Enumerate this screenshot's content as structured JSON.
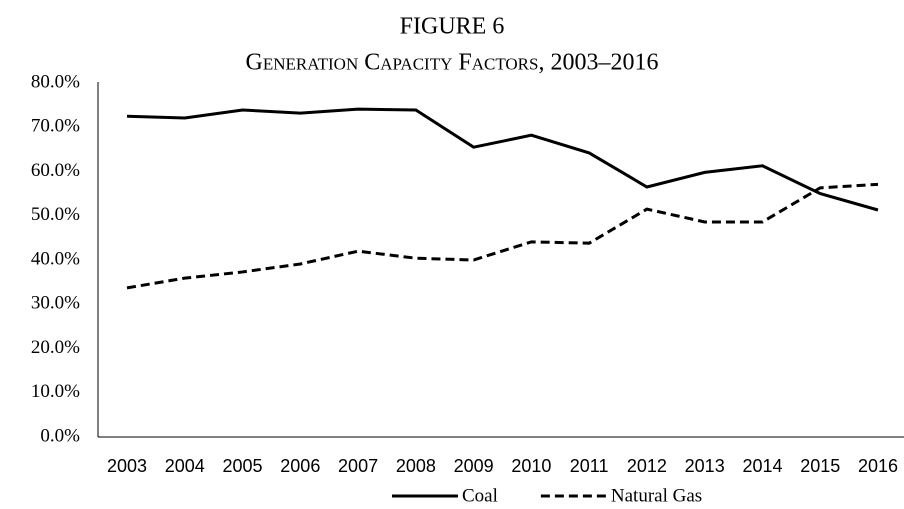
{
  "chart_data": {
    "type": "line",
    "title": "FIGURE 6",
    "subtitle": "Generation Capacity Factors, 2003–2016",
    "x": [
      "2003",
      "2004",
      "2005",
      "2006",
      "2007",
      "2008",
      "2009",
      "2010",
      "2011",
      "2012",
      "2013",
      "2014",
      "2015",
      "2016"
    ],
    "series": [
      {
        "name": "Coal",
        "color": "#000000",
        "dash": "solid",
        "values": [
          72.5,
          72.1,
          73.9,
          73.2,
          74.1,
          73.9,
          65.5,
          68.2,
          64.2,
          56.5,
          59.8,
          61.3,
          55.0,
          51.3
        ]
      },
      {
        "name": "Natural Gas",
        "color": "#000000",
        "dash": "dashed",
        "values": [
          33.7,
          35.9,
          37.3,
          39.1,
          42.0,
          40.4,
          40.0,
          44.1,
          43.8,
          51.5,
          48.6,
          48.6,
          56.3,
          57.1
        ]
      }
    ],
    "ylim": [
      0,
      80
    ],
    "yticks": [
      {
        "value": 0,
        "label": "0.0%"
      },
      {
        "value": 10,
        "label": "10.0%"
      },
      {
        "value": 20,
        "label": "20.0%"
      },
      {
        "value": 30,
        "label": "30.0%"
      },
      {
        "value": 40,
        "label": "40.0%"
      },
      {
        "value": 50,
        "label": "50.0%"
      },
      {
        "value": 60,
        "label": "60.0%"
      },
      {
        "value": 70,
        "label": "70.0%"
      },
      {
        "value": 80,
        "label": "80.0%"
      }
    ],
    "grid": false,
    "legend": "bottom"
  }
}
